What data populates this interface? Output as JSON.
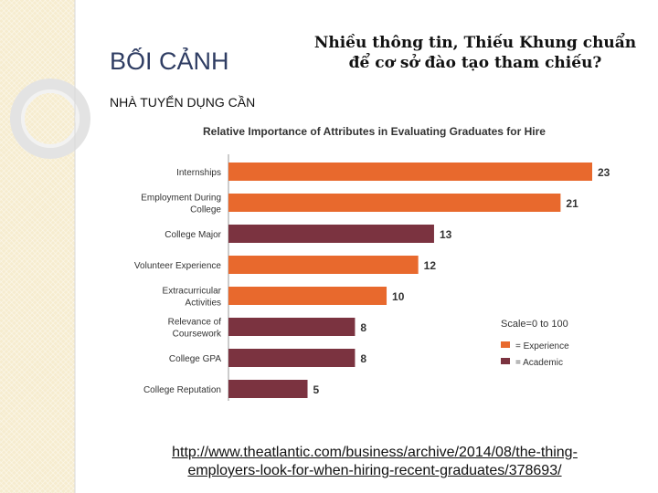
{
  "slide": {
    "title": "BỐI CẢNH",
    "subtitle": "NHÀ TUYỂN DỤNG CẦN",
    "headline_line1": "Nhiều thông tin, Thiếu Khung chuẩn",
    "headline_line2": "để cơ sở đào tạo tham chiếu?",
    "link_line1": "http://www.theatlantic.com/business/archive/2014/08/the-thing-",
    "link_line2": "employers-look-for-when-hiring-recent-graduates/378693/"
  },
  "colors": {
    "experience": "#e8692d",
    "academic": "#7b3340",
    "sidebar": "#f6eccf",
    "title": "#2f3d63"
  },
  "chart_data": {
    "type": "bar",
    "orientation": "horizontal",
    "title": "Relative Importance of Attributes in Evaluating Graduates for Hire",
    "categories": [
      [
        "Internships"
      ],
      [
        "Employment During",
        "College"
      ],
      [
        "College Major"
      ],
      [
        "Volunteer Experience"
      ],
      [
        "Extracurricular",
        "Activities"
      ],
      [
        "Relevance of",
        "Coursework"
      ],
      [
        "College GPA"
      ],
      [
        "College Reputation"
      ]
    ],
    "values": [
      23,
      21,
      13,
      12,
      10,
      8,
      8,
      5
    ],
    "groups": [
      "experience",
      "experience",
      "academic",
      "experience",
      "experience",
      "academic",
      "academic",
      "academic"
    ],
    "xlim": [
      0,
      23
    ],
    "scale_note": "Scale=0 to 100",
    "legend": [
      {
        "key": "experience",
        "label": "= Experience"
      },
      {
        "key": "academic",
        "label": "= Academic"
      }
    ],
    "legend_position": "right"
  }
}
